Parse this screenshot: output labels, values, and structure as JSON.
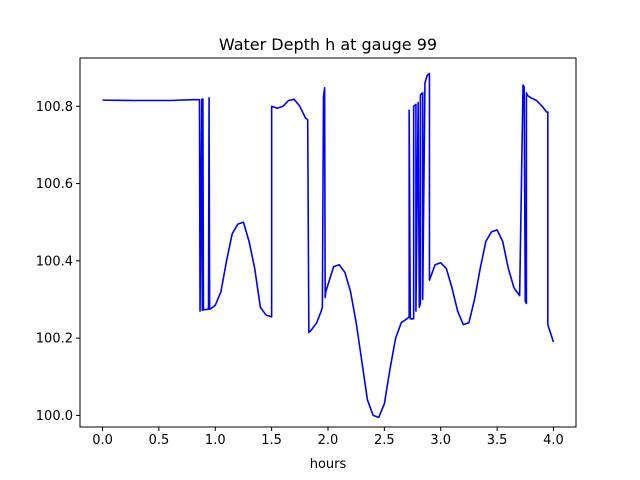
{
  "chart_data": {
    "type": "line",
    "title": "Water Depth h at gauge 99",
    "xlabel": "hours",
    "ylabel": "",
    "xlim": [
      -0.2,
      4.2
    ],
    "ylim": [
      99.97,
      100.925
    ],
    "xticks": [
      0.0,
      0.5,
      1.0,
      1.5,
      2.0,
      2.5,
      3.0,
      3.5,
      4.0
    ],
    "xtick_labels": [
      "0.0",
      "0.5",
      "1.0",
      "1.5",
      "2.0",
      "2.5",
      "3.0",
      "3.5",
      "4.0"
    ],
    "yticks": [
      100.0,
      100.2,
      100.4,
      100.6,
      100.8
    ],
    "ytick_labels": [
      "100.0",
      "100.2",
      "100.4",
      "100.6",
      "100.8"
    ],
    "grid": false,
    "series": [
      {
        "color": "#0000ff",
        "x": [
          0.0,
          0.3,
          0.6,
          0.8,
          0.86,
          0.865,
          0.88,
          0.885,
          0.89,
          0.895,
          0.9,
          0.92,
          0.94,
          0.945,
          0.95,
          0.96,
          1.0,
          1.05,
          1.1,
          1.15,
          1.2,
          1.25,
          1.3,
          1.35,
          1.4,
          1.45,
          1.5,
          1.5,
          1.55,
          1.6,
          1.65,
          1.7,
          1.75,
          1.8,
          1.82,
          1.83,
          1.85,
          1.9,
          1.94,
          1.95,
          1.96,
          1.97,
          1.975,
          1.98,
          2.05,
          2.1,
          2.15,
          2.2,
          2.25,
          2.3,
          2.35,
          2.4,
          2.45,
          2.5,
          2.55,
          2.6,
          2.65,
          2.7,
          2.72,
          2.72,
          2.73,
          2.76,
          2.76,
          2.78,
          2.78,
          2.8,
          2.81,
          2.82,
          2.82,
          2.84,
          2.84,
          2.86,
          2.88,
          2.9,
          2.9,
          2.95,
          3.0,
          3.05,
          3.1,
          3.15,
          3.2,
          3.25,
          3.3,
          3.35,
          3.4,
          3.45,
          3.5,
          3.55,
          3.6,
          3.65,
          3.7,
          3.73,
          3.74,
          3.75,
          3.76,
          3.76,
          3.77,
          3.8,
          3.85,
          3.9,
          3.94,
          3.95,
          3.95,
          4.0
        ],
        "y": [
          100.816,
          100.815,
          100.815,
          100.817,
          100.817,
          100.27,
          100.818,
          100.272,
          100.819,
          100.273,
          100.274,
          100.274,
          100.275,
          100.822,
          100.275,
          100.276,
          100.285,
          100.32,
          100.4,
          100.47,
          100.495,
          100.5,
          100.45,
          100.38,
          100.28,
          100.26,
          100.255,
          100.8,
          100.795,
          100.8,
          100.815,
          100.818,
          100.8,
          100.77,
          100.765,
          100.215,
          100.22,
          100.24,
          100.27,
          100.28,
          100.825,
          100.848,
          100.305,
          100.32,
          100.385,
          100.39,
          100.37,
          100.32,
          100.24,
          100.14,
          100.04,
          100.0,
          99.995,
          100.03,
          100.12,
          100.2,
          100.24,
          100.25,
          100.255,
          100.79,
          100.25,
          100.25,
          100.8,
          100.805,
          100.27,
          100.81,
          100.28,
          100.29,
          100.83,
          100.835,
          100.3,
          100.86,
          100.88,
          100.885,
          100.35,
          100.39,
          100.395,
          100.38,
          100.33,
          100.27,
          100.235,
          100.24,
          100.3,
          100.38,
          100.45,
          100.475,
          100.48,
          100.45,
          100.38,
          100.33,
          100.31,
          100.855,
          100.85,
          100.295,
          100.29,
          100.835,
          100.828,
          100.822,
          100.815,
          100.8,
          100.785,
          100.785,
          100.235,
          100.19
        ]
      }
    ]
  }
}
